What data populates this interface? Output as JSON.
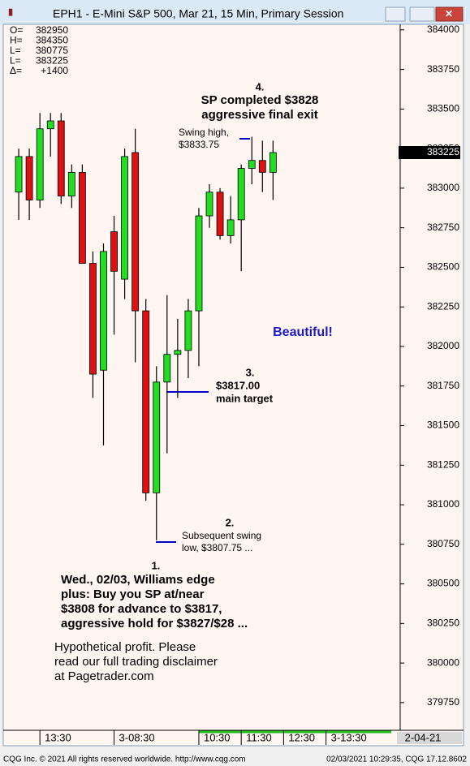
{
  "window": {
    "title": "EPH1 - E-Mini S&P 500, Mar 21, 15 Min, Primary Session",
    "footer_left": "CQG Inc. © 2021 All rights reserved worldwide. http://www.cqg.com",
    "footer_right": "02/03/2021 10:29:35, CQG 17.12.8602"
  },
  "info_box": [
    {
      "label": "O=",
      "value": "382950"
    },
    {
      "label": "H=",
      "value": "384350"
    },
    {
      "label": "L=",
      "value": "380775"
    },
    {
      "label": "L=",
      "value": "383225"
    },
    {
      "label": "Δ=",
      "value": "+1400"
    }
  ],
  "chart_data": {
    "type": "candlestick",
    "open": [
      382975,
      383200,
      382925,
      383375,
      383425,
      382950,
      383100,
      382525,
      381850,
      382725,
      382425,
      383225,
      382225,
      381075,
      381775,
      381950,
      381975,
      382225,
      382825,
      382975,
      382700,
      382800,
      383125,
      383175,
      383100
    ],
    "high": [
      383250,
      383250,
      383475,
      383475,
      383475,
      383150,
      383150,
      382600,
      382650,
      382825,
      383250,
      383375,
      382300,
      381875,
      382325,
      382175,
      382300,
      382875,
      383025,
      383000,
      382950,
      383150,
      383325,
      383300,
      383300
    ],
    "low": [
      382800,
      382800,
      382875,
      383200,
      382900,
      382875,
      382525,
      381675,
      381375,
      382075,
      382300,
      381900,
      381025,
      380775,
      381325,
      381675,
      381800,
      381875,
      382750,
      382675,
      382650,
      382475,
      383025,
      382975,
      382925
    ],
    "close": [
      383200,
      382925,
      383375,
      383425,
      382950,
      383100,
      382525,
      381825,
      382600,
      382475,
      383200,
      382225,
      381075,
      381775,
      381950,
      381975,
      382225,
      382825,
      382975,
      382700,
      382800,
      383125,
      383175,
      383100,
      383225
    ],
    "up_color": "#22dd22",
    "down_color": "#dd1111",
    "xlim": [
      -1,
      36
    ],
    "xticks": [
      {
        "value": 2,
        "label": "13:30"
      },
      {
        "value": 9,
        "label": "3-08:30"
      },
      {
        "value": 17,
        "label": "10:30"
      },
      {
        "value": 21,
        "label": "11:30"
      },
      {
        "value": 25,
        "label": "12:30"
      },
      {
        "value": 29,
        "label": "3-13:30"
      }
    ],
    "date_label": "2-04-21",
    "ylim": [
      379575,
      384035
    ],
    "yticks": [
      379750,
      380000,
      380250,
      380500,
      380750,
      381000,
      381250,
      381500,
      381750,
      382000,
      382250,
      382500,
      382750,
      383000,
      383250,
      383500,
      383750,
      384000
    ],
    "last_price": 383225,
    "annotations": [
      {
        "number": "4.",
        "lines": [
          "SP completed $3828",
          "aggressive final exit"
        ]
      },
      {
        "lines": [
          "Swing high,",
          "$3833.75"
        ]
      },
      {
        "number": "3.",
        "lines": [
          "$3817.00",
          "main target"
        ]
      },
      {
        "number": "2.",
        "lines": [
          "Subsequent swing",
          "low, $3807.75 ..."
        ]
      },
      {
        "number": "1.",
        "lines": [
          "Wed., 02/03, Williams edge",
          "plus: Buy you SP at/near",
          "$3808 for advance to $3817,",
          "aggressive hold for $3827/$28 ..."
        ]
      },
      {
        "lines": [
          "Hypothetical profit. Please",
          "read our full trading disclaimer",
          "at Pagetrader.com"
        ]
      },
      {
        "lines": [
          "Beautiful!"
        ]
      }
    ]
  }
}
